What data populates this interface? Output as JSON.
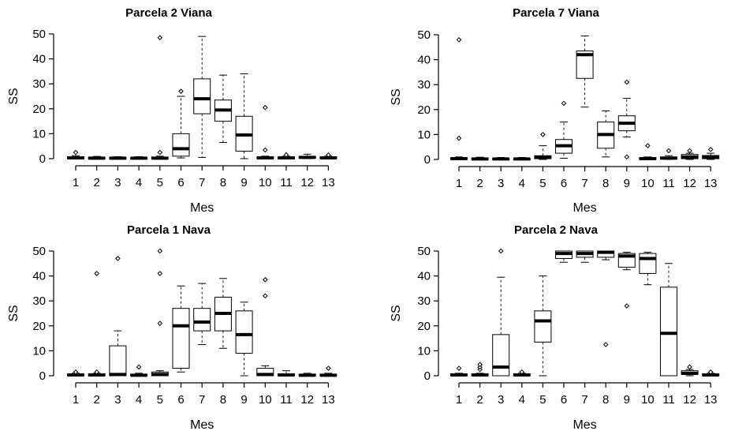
{
  "chart_data": [
    {
      "type": "box",
      "title": "Parcela 2 Viana",
      "xlabel": "Mes",
      "ylabel": "SS",
      "ylim": [
        0,
        50
      ],
      "yticks": [
        0,
        10,
        20,
        30,
        40,
        50
      ],
      "categories": [
        "1",
        "2",
        "3",
        "4",
        "5",
        "6",
        "7",
        "8",
        "9",
        "10",
        "11",
        "12",
        "13"
      ],
      "boxes": [
        {
          "min": 0,
          "q1": 0,
          "median": 0.3,
          "q3": 0.8,
          "max": 1.2,
          "outliers": [
            2.5
          ]
        },
        {
          "min": 0,
          "q1": 0,
          "median": 0.2,
          "q3": 0.6,
          "max": 0.9,
          "outliers": []
        },
        {
          "min": 0,
          "q1": 0,
          "median": 0.2,
          "q3": 0.5,
          "max": 0.8,
          "outliers": []
        },
        {
          "min": 0,
          "q1": 0,
          "median": 0.2,
          "q3": 0.5,
          "max": 0.8,
          "outliers": []
        },
        {
          "min": 0,
          "q1": 0,
          "median": 0.2,
          "q3": 0.6,
          "max": 1.0,
          "outliers": [
            2.5,
            48.5
          ]
        },
        {
          "min": 0.3,
          "q1": 1.0,
          "median": 4.0,
          "q3": 10.0,
          "max": 25.0,
          "outliers": [
            27
          ]
        },
        {
          "min": 0.5,
          "q1": 18.0,
          "median": 24.0,
          "q3": 32.0,
          "max": 49.0,
          "outliers": []
        },
        {
          "min": 6.5,
          "q1": 15.0,
          "median": 19.5,
          "q3": 23.5,
          "max": 33.5,
          "outliers": []
        },
        {
          "min": 0,
          "q1": 3.0,
          "median": 9.5,
          "q3": 17.0,
          "max": 34.0,
          "outliers": []
        },
        {
          "min": 0,
          "q1": 0,
          "median": 0.3,
          "q3": 0.7,
          "max": 1.0,
          "outliers": [
            3.5,
            20.5
          ]
        },
        {
          "min": 0,
          "q1": 0,
          "median": 0.3,
          "q3": 0.7,
          "max": 1.0,
          "outliers": [
            1.5
          ]
        },
        {
          "min": 0,
          "q1": 0.2,
          "median": 0.5,
          "q3": 0.9,
          "max": 1.8,
          "outliers": []
        },
        {
          "min": 0,
          "q1": 0,
          "median": 0.3,
          "q3": 0.8,
          "max": 1.0,
          "outliers": [
            1.5
          ]
        }
      ]
    },
    {
      "type": "box",
      "title": "Parcela 7 Viana",
      "xlabel": "Mes",
      "ylabel": "SS",
      "ylim": [
        0,
        50
      ],
      "yticks": [
        0,
        10,
        20,
        30,
        40,
        50
      ],
      "categories": [
        "1",
        "2",
        "3",
        "4",
        "5",
        "6",
        "7",
        "8",
        "9",
        "10",
        "11",
        "12",
        "13"
      ],
      "boxes": [
        {
          "min": 0,
          "q1": 0,
          "median": 0.3,
          "q3": 0.7,
          "max": 1.0,
          "outliers": [
            8.5,
            48
          ]
        },
        {
          "min": 0,
          "q1": 0,
          "median": 0.2,
          "q3": 0.6,
          "max": 0.9,
          "outliers": []
        },
        {
          "min": 0,
          "q1": 0,
          "median": 0.2,
          "q3": 0.5,
          "max": 0.8,
          "outliers": []
        },
        {
          "min": 0,
          "q1": 0,
          "median": 0.2,
          "q3": 0.5,
          "max": 0.8,
          "outliers": []
        },
        {
          "min": 0,
          "q1": 0.3,
          "median": 0.8,
          "q3": 1.5,
          "max": 5.5,
          "outliers": [
            10
          ]
        },
        {
          "min": 0.5,
          "q1": 2.5,
          "median": 5.5,
          "q3": 8.0,
          "max": 15.0,
          "outliers": [
            22.5
          ]
        },
        {
          "min": 21.0,
          "q1": 32.5,
          "median": 42.0,
          "q3": 43.5,
          "max": 49.5,
          "outliers": []
        },
        {
          "min": 1.0,
          "q1": 4.5,
          "median": 10.0,
          "q3": 15.0,
          "max": 19.5,
          "outliers": []
        },
        {
          "min": 9.0,
          "q1": 11.5,
          "median": 14.5,
          "q3": 17.5,
          "max": 24.5,
          "outliers": [
            1,
            31
          ]
        },
        {
          "min": 0,
          "q1": 0,
          "median": 0.3,
          "q3": 0.8,
          "max": 1.0,
          "outliers": [
            5.5
          ]
        },
        {
          "min": 0,
          "q1": 0.2,
          "median": 0.5,
          "q3": 1.0,
          "max": 1.5,
          "outliers": [
            3.5
          ]
        },
        {
          "min": 0,
          "q1": 0.3,
          "median": 1.0,
          "q3": 2.0,
          "max": 2.5,
          "outliers": [
            3.5
          ]
        },
        {
          "min": 0,
          "q1": 0.3,
          "median": 0.8,
          "q3": 1.6,
          "max": 2.5,
          "outliers": [
            4
          ]
        }
      ]
    },
    {
      "type": "box",
      "title": "Parcela 1 Nava",
      "xlabel": "Mes",
      "ylabel": "SS",
      "ylim": [
        0,
        50
      ],
      "yticks": [
        0,
        10,
        20,
        30,
        40,
        50
      ],
      "categories": [
        "1",
        "2",
        "3",
        "4",
        "5",
        "6",
        "7",
        "8",
        "9",
        "10",
        "11",
        "12",
        "13"
      ],
      "boxes": [
        {
          "min": 0,
          "q1": 0,
          "median": 0.3,
          "q3": 0.8,
          "max": 1.0,
          "outliers": [
            1.5
          ]
        },
        {
          "min": 0,
          "q1": 0,
          "median": 0.3,
          "q3": 0.8,
          "max": 1.0,
          "outliers": [
            1.5,
            41
          ]
        },
        {
          "min": 0,
          "q1": 0,
          "median": 0.5,
          "q3": 12.0,
          "max": 18.0,
          "outliers": [
            47
          ]
        },
        {
          "min": 0,
          "q1": 0,
          "median": 0.2,
          "q3": 0.6,
          "max": 1.0,
          "outliers": [
            3.5
          ]
        },
        {
          "min": 0,
          "q1": 0,
          "median": 0.5,
          "q3": 1.5,
          "max": 2.0,
          "outliers": [
            21,
            41,
            50
          ]
        },
        {
          "min": 1.5,
          "q1": 3.0,
          "median": 20.0,
          "q3": 27.0,
          "max": 36.0,
          "outliers": []
        },
        {
          "min": 12.5,
          "q1": 18.0,
          "median": 21.5,
          "q3": 27.0,
          "max": 37.0,
          "outliers": []
        },
        {
          "min": 11.0,
          "q1": 18.0,
          "median": 25.0,
          "q3": 31.5,
          "max": 39.0,
          "outliers": []
        },
        {
          "min": 0,
          "q1": 9.0,
          "median": 16.5,
          "q3": 26.0,
          "max": 29.5,
          "outliers": []
        },
        {
          "min": 0,
          "q1": 0,
          "median": 0.5,
          "q3": 3.0,
          "max": 4.0,
          "outliers": [
            32,
            38.5
          ]
        },
        {
          "min": 0,
          "q1": 0,
          "median": 0.3,
          "q3": 0.8,
          "max": 2.0,
          "outliers": []
        },
        {
          "min": 0,
          "q1": 0,
          "median": 0.2,
          "q3": 0.6,
          "max": 1.0,
          "outliers": []
        },
        {
          "min": 0,
          "q1": 0,
          "median": 0.2,
          "q3": 0.6,
          "max": 1.0,
          "outliers": [
            3
          ]
        }
      ]
    },
    {
      "type": "box",
      "title": "Parcela 2 Nava",
      "xlabel": "Mes",
      "ylabel": "SS",
      "ylim": [
        0,
        50
      ],
      "yticks": [
        0,
        10,
        20,
        30,
        40,
        50
      ],
      "categories": [
        "1",
        "2",
        "3",
        "4",
        "5",
        "6",
        "7",
        "8",
        "9",
        "10",
        "11",
        "12",
        "13"
      ],
      "boxes": [
        {
          "min": 0,
          "q1": 0,
          "median": 0.3,
          "q3": 0.8,
          "max": 1.0,
          "outliers": [
            3
          ]
        },
        {
          "min": 0,
          "q1": 0,
          "median": 0.3,
          "q3": 0.8,
          "max": 1.0,
          "outliers": [
            2.5,
            3.5,
            4.5
          ]
        },
        {
          "min": 0,
          "q1": 0,
          "median": 3.5,
          "q3": 16.5,
          "max": 39.5,
          "outliers": [
            50
          ]
        },
        {
          "min": 0,
          "q1": 0,
          "median": 0.3,
          "q3": 0.8,
          "max": 1.0,
          "outliers": [
            1.5
          ]
        },
        {
          "min": 0,
          "q1": 13.5,
          "median": 22.0,
          "q3": 26.0,
          "max": 40.0,
          "outliers": []
        },
        {
          "min": 45.5,
          "q1": 47.0,
          "median": 49.0,
          "q3": 50.0,
          "max": 50.0,
          "outliers": []
        },
        {
          "min": 45.5,
          "q1": 47.5,
          "median": 49.0,
          "q3": 50.0,
          "max": 50.0,
          "outliers": []
        },
        {
          "min": 46.5,
          "q1": 47.5,
          "median": 49.5,
          "q3": 50.0,
          "max": 50.0,
          "outliers": [
            12.5
          ]
        },
        {
          "min": 42.5,
          "q1": 43.5,
          "median": 48.0,
          "q3": 49.0,
          "max": 49.5,
          "outliers": [
            28
          ]
        },
        {
          "min": 36.5,
          "q1": 41.0,
          "median": 47.0,
          "q3": 49.0,
          "max": 49.5,
          "outliers": []
        },
        {
          "min": 0,
          "q1": 0,
          "median": 17.0,
          "q3": 35.5,
          "max": 45.0,
          "outliers": []
        },
        {
          "min": 0,
          "q1": 0.5,
          "median": 1.0,
          "q3": 2.0,
          "max": 2.5,
          "outliers": [
            3.5
          ]
        },
        {
          "min": 0,
          "q1": 0,
          "median": 0.3,
          "q3": 0.8,
          "max": 1.0,
          "outliers": [
            1.5
          ]
        }
      ]
    }
  ]
}
